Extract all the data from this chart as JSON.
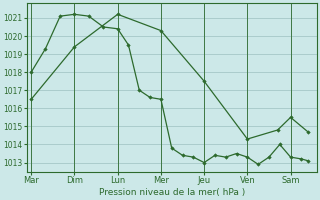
{
  "background_color": "#cce8e8",
  "grid_color": "#aacccc",
  "line_color": "#2d6a2d",
  "marker_color": "#2d6a2d",
  "xlabel": "Pression niveau de la mer( hPa )",
  "xlabel_color": "#2d6a2d",
  "xtick_labels": [
    "Mar",
    "Dim",
    "Lun",
    "Mer",
    "Jeu",
    "Ven",
    "Sam"
  ],
  "xtick_positions": [
    0,
    1,
    2,
    3,
    4,
    5,
    6
  ],
  "xlim": [
    -0.1,
    6.6
  ],
  "ylim": [
    1012.5,
    1021.8
  ],
  "yticks": [
    1013,
    1014,
    1015,
    1016,
    1017,
    1018,
    1019,
    1020,
    1021
  ],
  "series_smooth_x": [
    0.0,
    1.0,
    2.0,
    3.0,
    4.0,
    5.0,
    5.7,
    6.0,
    6.4
  ],
  "series_smooth_y": [
    1016.5,
    1019.4,
    1021.2,
    1020.3,
    1017.5,
    1014.3,
    1014.8,
    1015.5,
    1014.7
  ],
  "series_jagged_x": [
    0.0,
    0.33,
    0.67,
    1.0,
    1.33,
    1.67,
    2.0,
    2.25,
    2.5,
    2.75,
    3.0,
    3.25,
    3.5,
    3.75,
    4.0,
    4.25,
    4.5,
    4.75,
    5.0,
    5.25,
    5.5,
    5.75,
    6.0,
    6.25,
    6.4
  ],
  "series_jagged_y": [
    1018.0,
    1019.3,
    1021.1,
    1021.2,
    1021.1,
    1020.5,
    1020.4,
    1019.5,
    1017.0,
    1016.6,
    1016.5,
    1013.8,
    1013.4,
    1013.3,
    1013.0,
    1013.4,
    1013.3,
    1013.5,
    1013.3,
    1012.9,
    1013.3,
    1014.0,
    1013.3,
    1013.2,
    1013.1
  ]
}
